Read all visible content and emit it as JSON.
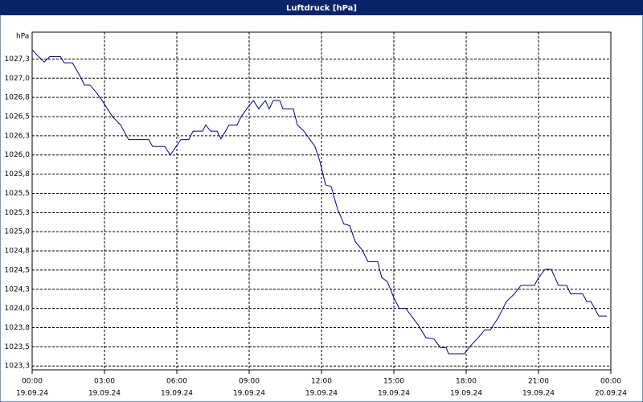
{
  "chart_data": {
    "type": "line",
    "title": "Luftdruck [hPa]",
    "y_unit": "hPa",
    "xlim": [
      0,
      24
    ],
    "ylim": [
      1023.2,
      1027.6
    ],
    "xticks": [
      {
        "value": 0,
        "label": "00:00"
      },
      {
        "value": 3,
        "label": "03:00"
      },
      {
        "value": 6,
        "label": "06:00"
      },
      {
        "value": 9,
        "label": "09:00"
      },
      {
        "value": 12,
        "label": "12:00"
      },
      {
        "value": 15,
        "label": "15:00"
      },
      {
        "value": 18,
        "label": "18:00"
      },
      {
        "value": 21,
        "label": "21:00"
      },
      {
        "value": 24,
        "label": "00:00"
      }
    ],
    "xtick_dates": [
      "19.09.24",
      "19.09.24",
      "19.09.24",
      "19.09.24",
      "19.09.24",
      "19.09.24",
      "19.09.24",
      "19.09.24",
      "20.09.24"
    ],
    "yticks": [
      {
        "value": 1023.25,
        "label": "1023,3"
      },
      {
        "value": 1023.5,
        "label": "1023,5"
      },
      {
        "value": 1023.75,
        "label": "1023,8"
      },
      {
        "value": 1024,
        "label": "1024,0"
      },
      {
        "value": 1024.25,
        "label": "1024,3"
      },
      {
        "value": 1024.5,
        "label": "1024,5"
      },
      {
        "value": 1024.75,
        "label": "1024,8"
      },
      {
        "value": 1025,
        "label": "1025,0"
      },
      {
        "value": 1025.25,
        "label": "1025,3"
      },
      {
        "value": 1025.5,
        "label": "1025,5"
      },
      {
        "value": 1025.75,
        "label": "1025,8"
      },
      {
        "value": 1026,
        "label": "1026,0"
      },
      {
        "value": 1026.25,
        "label": "1026,3"
      },
      {
        "value": 1026.5,
        "label": "1026,5"
      },
      {
        "value": 1026.75,
        "label": "1026,8"
      },
      {
        "value": 1027,
        "label": "1027,0"
      },
      {
        "value": 1027.25,
        "label": "1027,3"
      }
    ],
    "grid": true,
    "color": "#00008b",
    "x": [
      0,
      0.27,
      0.5,
      0.73,
      1.17,
      1.33,
      1.67,
      2,
      2.17,
      2.4,
      2.67,
      2.9,
      3.33,
      3.67,
      4,
      4.83,
      5,
      5.5,
      5.73,
      6.17,
      6.5,
      6.67,
      7.07,
      7.2,
      7.4,
      7.67,
      7.83,
      8.17,
      8.5,
      8.67,
      8.9,
      9.17,
      9.4,
      9.67,
      9.83,
      10,
      10.27,
      10.4,
      10.83,
      11,
      11.27,
      11.5,
      11.73,
      11.93,
      12.17,
      12.4,
      12.67,
      12.93,
      13.17,
      13.4,
      13.67,
      13.93,
      14.33,
      14.5,
      14.73,
      15,
      15.23,
      15.5,
      15.73,
      16,
      16.33,
      16.67,
      16.93,
      17.17,
      17.27,
      17.93,
      18.17,
      18.5,
      18.77,
      19,
      19.33,
      19.67,
      20,
      20.27,
      20.83,
      21,
      21.27,
      21.53,
      21.83,
      22.17,
      22.33,
      22.83,
      23,
      23.17,
      23.5,
      23.83
    ],
    "values": [
      1027.37,
      1027.28,
      1027.21,
      1027.28,
      1027.28,
      1027.2,
      1027.2,
      1027.02,
      1026.91,
      1026.91,
      1026.81,
      1026.71,
      1026.5,
      1026.39,
      1026.2,
      1026.2,
      1026.11,
      1026.11,
      1026.0,
      1026.2,
      1026.2,
      1026.31,
      1026.31,
      1026.39,
      1026.31,
      1026.31,
      1026.21,
      1026.39,
      1026.39,
      1026.5,
      1026.6,
      1026.71,
      1026.6,
      1026.71,
      1026.6,
      1026.71,
      1026.71,
      1026.6,
      1026.6,
      1026.39,
      1026.31,
      1026.21,
      1026.11,
      1025.92,
      1025.61,
      1025.59,
      1025.29,
      1025.1,
      1025.08,
      1024.87,
      1024.77,
      1024.61,
      1024.61,
      1024.4,
      1024.35,
      1024.14,
      1024.0,
      1024.0,
      1023.9,
      1023.79,
      1023.62,
      1023.6,
      1023.49,
      1023.49,
      1023.41,
      1023.41,
      1023.51,
      1023.62,
      1023.72,
      1023.72,
      1023.88,
      1024.09,
      1024.19,
      1024.3,
      1024.3,
      1024.4,
      1024.51,
      1024.51,
      1024.3,
      1024.3,
      1024.19,
      1024.19,
      1024.09,
      1024.09,
      1023.9,
      1023.9
    ]
  }
}
